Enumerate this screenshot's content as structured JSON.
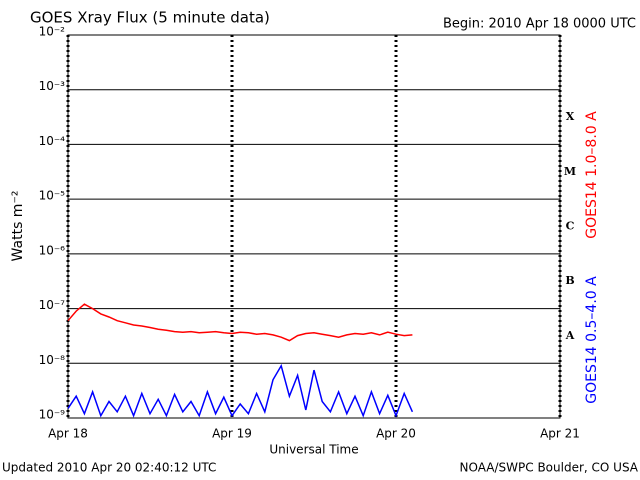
{
  "chart_data": {
    "type": "line",
    "title": "GOES Xray Flux (5 minute data)",
    "subtitle": "Begin:  2010 Apr 18 0000 UTC",
    "x_label": "Universal Time",
    "y_label": "Watts m⁻²",
    "footer_left": "Updated 2010 Apr 20 02:40:12 UTC",
    "footer_right": "NOAA/SWPC Boulder, CO USA",
    "log_y": true,
    "grid": true,
    "xlim": [
      0,
      3
    ],
    "xticks": [
      {
        "value": 0,
        "label": "Apr 18"
      },
      {
        "value": 1,
        "label": "Apr 19"
      },
      {
        "value": 2,
        "label": "Apr 20"
      },
      {
        "value": 3,
        "label": "Apr 21"
      }
    ],
    "ylim": [
      1e-09,
      0.01
    ],
    "yticks": [
      {
        "value": 1e-09,
        "label": "10⁻⁹"
      },
      {
        "value": 1e-08,
        "label": "10⁻⁸"
      },
      {
        "value": 1e-07,
        "label": "10⁻⁷"
      },
      {
        "value": 1e-06,
        "label": "10⁻⁶"
      },
      {
        "value": 1e-05,
        "label": "10⁻⁵"
      },
      {
        "value": 0.0001,
        "label": "10⁻⁴"
      },
      {
        "value": 0.001,
        "label": "10⁻³"
      },
      {
        "value": 0.01,
        "label": "10⁻²"
      }
    ],
    "flare_classes": [
      {
        "label": "A",
        "value": 1e-08
      },
      {
        "label": "B",
        "value": 1e-07
      },
      {
        "label": "C",
        "value": 1e-06
      },
      {
        "label": "M",
        "value": 1e-05
      },
      {
        "label": "X",
        "value": 0.0001
      }
    ],
    "x": [
      0,
      0.05,
      0.1,
      0.15,
      0.2,
      0.25,
      0.3,
      0.35,
      0.4,
      0.45,
      0.5,
      0.55,
      0.6,
      0.65,
      0.7,
      0.75,
      0.8,
      0.85,
      0.9,
      0.95,
      1.0,
      1.05,
      1.1,
      1.15,
      1.2,
      1.25,
      1.3,
      1.35,
      1.4,
      1.45,
      1.5,
      1.55,
      1.6,
      1.65,
      1.7,
      1.75,
      1.8,
      1.85,
      1.9,
      1.95,
      2.0,
      2.05,
      2.1
    ],
    "series": [
      {
        "name": "GOES14 1.0–8.0 A",
        "color": "#ff0000",
        "values": [
          6e-08,
          9e-08,
          1.2e-07,
          1e-07,
          8e-08,
          7e-08,
          6e-08,
          5.5e-08,
          5e-08,
          4.8e-08,
          4.5e-08,
          4.2e-08,
          4e-08,
          3.8e-08,
          3.7e-08,
          3.8e-08,
          3.6e-08,
          3.7e-08,
          3.8e-08,
          3.6e-08,
          3.5e-08,
          3.7e-08,
          3.6e-08,
          3.4e-08,
          3.5e-08,
          3.3e-08,
          3e-08,
          2.6e-08,
          3.2e-08,
          3.5e-08,
          3.6e-08,
          3.4e-08,
          3.2e-08,
          3e-08,
          3.3e-08,
          3.5e-08,
          3.4e-08,
          3.6e-08,
          3.3e-08,
          3.7e-08,
          3.4e-08,
          3.2e-08,
          3.3e-08
        ]
      },
      {
        "name": "GOES14 0.5–4.0 A",
        "color": "#0000ff",
        "values": [
          1.5e-09,
          2.5e-09,
          1.2e-09,
          3e-09,
          1.1e-09,
          2e-09,
          1.3e-09,
          2.5e-09,
          1.1e-09,
          2.8e-09,
          1.2e-09,
          2.2e-09,
          1.1e-09,
          2.7e-09,
          1.3e-09,
          2e-09,
          1.1e-09,
          3e-09,
          1.2e-09,
          2.4e-09,
          1.1e-09,
          1.8e-09,
          1.2e-09,
          2.8e-09,
          1.3e-09,
          5e-09,
          9e-09,
          2.5e-09,
          6e-09,
          1.4e-09,
          7.5e-09,
          2e-09,
          1.3e-09,
          3e-09,
          1.2e-09,
          2.5e-09,
          1.1e-09,
          3e-09,
          1.2e-09,
          2.6e-09,
          1.1e-09,
          2.8e-09,
          1.3e-09
        ]
      }
    ]
  }
}
